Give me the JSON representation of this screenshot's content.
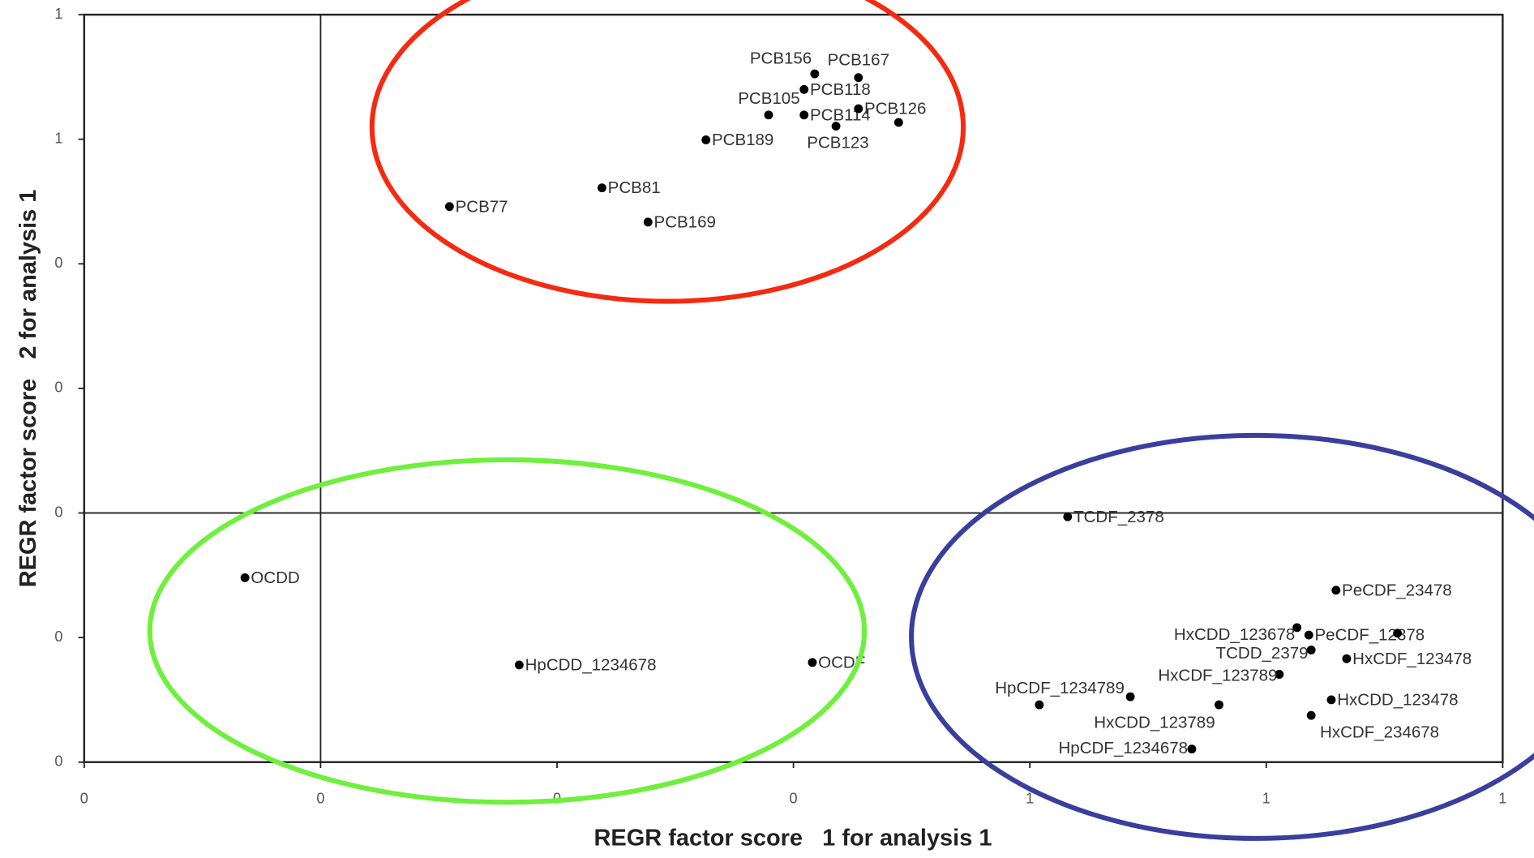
{
  "chart_data": {
    "type": "scatter",
    "x_label": "REGR factor score   1 for analysis 1",
    "y_label": "REGR factor score   2 for analysis 1",
    "xlim": [
      -0.2,
      1.0
    ],
    "xticks": [
      {
        "value": -0.2,
        "label": "0"
      },
      0,
      {
        "value": 0.2,
        "label": "0"
      },
      {
        "value": 0.4,
        "label": "0"
      },
      {
        "value": 0.6,
        "label": "1"
      },
      {
        "value": 0.8,
        "label": "1"
      },
      1
    ],
    "ylim": [
      -0.4,
      0.8
    ],
    "yticks": [
      {
        "value": -0.4,
        "label": "0"
      },
      {
        "value": -0.2,
        "label": "0"
      },
      0,
      {
        "value": 0.2,
        "label": "0"
      },
      {
        "value": 0.4,
        "label": "0"
      },
      {
        "value": 0.6,
        "label": "1"
      },
      {
        "value": 0.8,
        "label": "1"
      }
    ],
    "reference_lines": {
      "x": 0,
      "y": 0
    },
    "color": "#000000",
    "labels": [
      "PCB156",
      "PCB167",
      "PCB118",
      "PCB105",
      "PCB114",
      "PCB126",
      null,
      "PCB123",
      "PCB189",
      "PCB81",
      "PCB77",
      "PCB169",
      "TCDF_2378",
      "OCDD",
      "HpCDD_1234678",
      "OCDF",
      "PeCDF_23478",
      "HxCDD_123678",
      "PeCDF_12378",
      null,
      "TCDD_2379",
      "HxCDF_123478",
      "HxCDF_123789",
      null,
      "HpCDF_1234789",
      "HxCDD_123789",
      "HxCDD_123478",
      "HxCDF_234678",
      "HpCDF_1234678"
    ],
    "x": [
      0.418,
      0.455,
      0.409,
      0.379,
      0.409,
      0.455,
      0.489,
      0.436,
      0.326,
      0.238,
      0.109,
      0.277,
      0.632,
      -0.064,
      0.168,
      0.416,
      0.859,
      0.826,
      0.836,
      0.911,
      0.838,
      0.868,
      0.811,
      0.608,
      0.685,
      0.76,
      0.855,
      0.838,
      0.737
    ],
    "values": [
      0.705,
      0.699,
      0.68,
      0.639,
      0.639,
      0.649,
      0.627,
      0.621,
      0.599,
      0.522,
      0.492,
      0.467,
      -0.006,
      -0.104,
      -0.244,
      -0.24,
      -0.124,
      -0.184,
      -0.196,
      -0.193,
      -0.22,
      -0.234,
      -0.259,
      -0.308,
      -0.295,
      -0.308,
      -0.3,
      -0.325,
      -0.379
    ]
  }
}
